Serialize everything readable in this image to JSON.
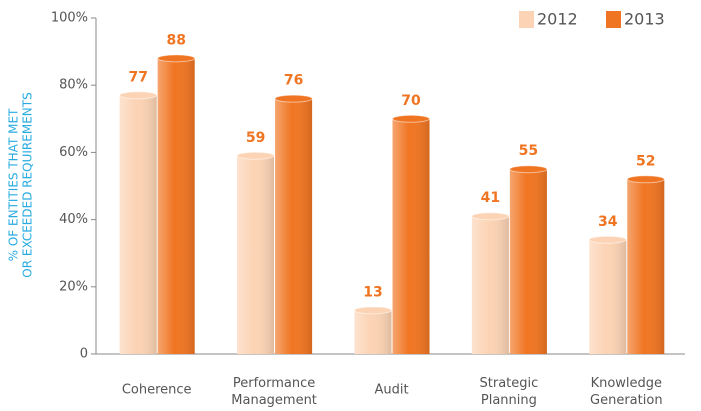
{
  "chart_data": {
    "type": "bar",
    "ylabel": [
      "% OF ENTITIES THAT MET",
      "OR EXCEEDED REQUIREMENTS"
    ],
    "categories": [
      "Coherence",
      "Performance Management",
      "Audit",
      "Strategic Planning",
      "Knowledge Generation"
    ],
    "series": [
      {
        "name": "2012",
        "color": "#fcd3b4",
        "values": [
          77,
          59,
          13,
          41,
          34
        ]
      },
      {
        "name": "2013",
        "color": "#f07522",
        "values": [
          88,
          76,
          70,
          55,
          52
        ]
      }
    ],
    "ylim": [
      0,
      100
    ],
    "yticks": [
      0,
      {
        "value": 20,
        "label": "20%"
      },
      {
        "value": 40,
        "label": "40%"
      },
      {
        "value": 60,
        "label": "60%"
      },
      {
        "value": 80,
        "label": "80%"
      },
      {
        "value": 100,
        "label": "100%"
      }
    ],
    "legend": "top-right"
  }
}
